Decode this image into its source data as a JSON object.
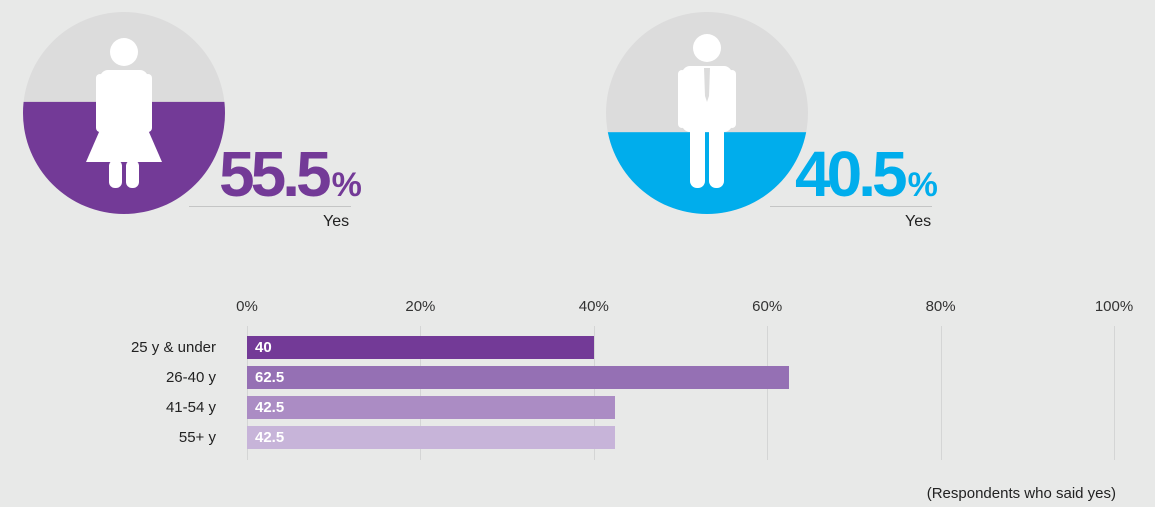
{
  "women": {
    "value": "55.5",
    "sign": "%",
    "label": "Yes",
    "fill_fraction": 0.555,
    "color": "#733a97"
  },
  "men": {
    "value": "40.5",
    "sign": "%",
    "label": "Yes",
    "fill_fraction": 0.405,
    "color": "#00adec"
  },
  "colors": {
    "circle_bg": "#dcdcdc",
    "figure": "#ffffff"
  },
  "chart_data": {
    "type": "bar",
    "orientation": "horizontal",
    "x_ticks": [
      "0%",
      "20%",
      "40%",
      "60%",
      "80%",
      "100%"
    ],
    "xlim": [
      0,
      100
    ],
    "categories": [
      "25 y & under",
      "26-40 y",
      "41-54 y",
      "55+ y"
    ],
    "values": [
      40,
      62.5,
      42.5,
      42.5
    ],
    "value_labels": [
      "40",
      "62.5",
      "42.5",
      "42.5"
    ],
    "bar_colors": [
      "#733a97",
      "#9570b4",
      "#ab8cc4",
      "#c7b4d9"
    ],
    "grid": true,
    "footnote": "(Respondents who said yes)"
  }
}
